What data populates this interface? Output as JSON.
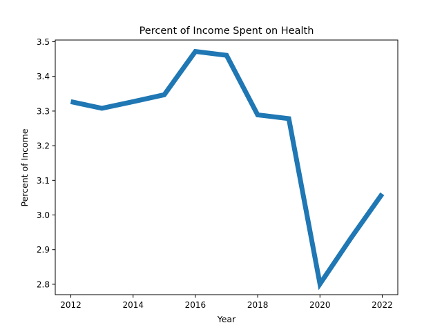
{
  "chart_data": {
    "type": "line",
    "title": "Percent of Income Spent on Health",
    "xlabel": "Year",
    "ylabel": "Percent of Income",
    "x": [
      2012,
      2013,
      2014,
      2015,
      2016,
      2017,
      2018,
      2019,
      2020,
      2021,
      2022
    ],
    "series": [
      {
        "values": [
          3.327,
          3.308,
          3.327,
          3.347,
          3.472,
          3.461,
          3.289,
          3.278,
          2.801,
          2.934,
          3.061
        ]
      }
    ],
    "xlim": [
      2011.5,
      2022.5
    ],
    "ylim": [
      2.77,
      3.505
    ],
    "xticks": [
      2012,
      2014,
      2016,
      2018,
      2020,
      2022
    ],
    "yticks": [
      2.8,
      2.9,
      3.0,
      3.1,
      3.2,
      3.3,
      3.4,
      3.5
    ],
    "ytick_labels": [
      "2.8",
      "2.9",
      "3.0",
      "3.1",
      "3.2",
      "3.3",
      "3.4",
      "3.5"
    ],
    "grid": false,
    "colors": {
      "line": "#1f77b4",
      "axes": "#000000",
      "background": "#ffffff"
    }
  }
}
